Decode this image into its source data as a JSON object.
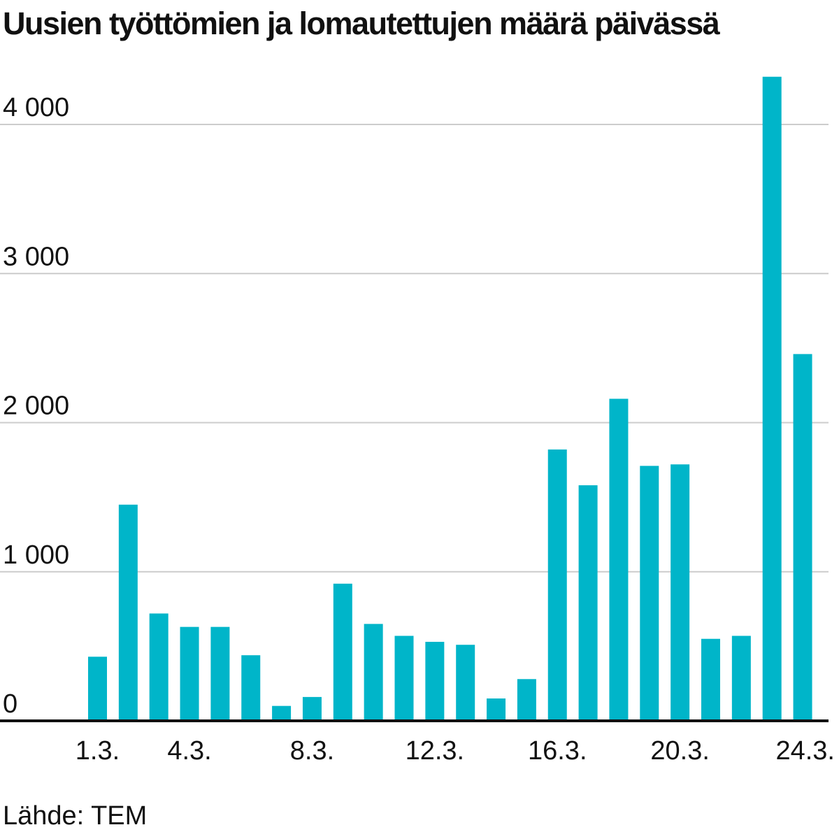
{
  "chart_data": {
    "type": "bar",
    "title": "Uusien työttömien ja lomautettujen määrä päivässä",
    "xlabel": "",
    "ylabel": "",
    "categories": [
      "1.3.",
      "2.3.",
      "3.3.",
      "4.3.",
      "5.3.",
      "6.3.",
      "7.3.",
      "8.3.",
      "9.3.",
      "10.3.",
      "11.3.",
      "12.3.",
      "13.3.",
      "14.3.",
      "15.3.",
      "16.3.",
      "17.3.",
      "18.3.",
      "19.3.",
      "20.3.",
      "21.3.",
      "22.3.",
      "23.3.",
      "24.3."
    ],
    "values": [
      430,
      1450,
      720,
      630,
      630,
      440,
      100,
      160,
      920,
      650,
      570,
      530,
      510,
      150,
      280,
      1820,
      1580,
      2160,
      1710,
      1720,
      550,
      570,
      4320,
      2460
    ],
    "x_tick_labels": [
      "1.3.",
      "4.3.",
      "8.3.",
      "12.3.",
      "16.3.",
      "20.3.",
      "24.3."
    ],
    "y_ticks": [
      0,
      1000,
      2000,
      3000,
      4000
    ],
    "y_tick_labels": [
      "0",
      "1 000",
      "2 000",
      "3 000",
      "4 000"
    ],
    "ylim": [
      0,
      4400
    ],
    "grid": true,
    "legend": "none",
    "bar_color": "#00b5c9",
    "grid_color": "#cccccc",
    "axis_color": "#111111"
  },
  "source": "Lähde: TEM"
}
